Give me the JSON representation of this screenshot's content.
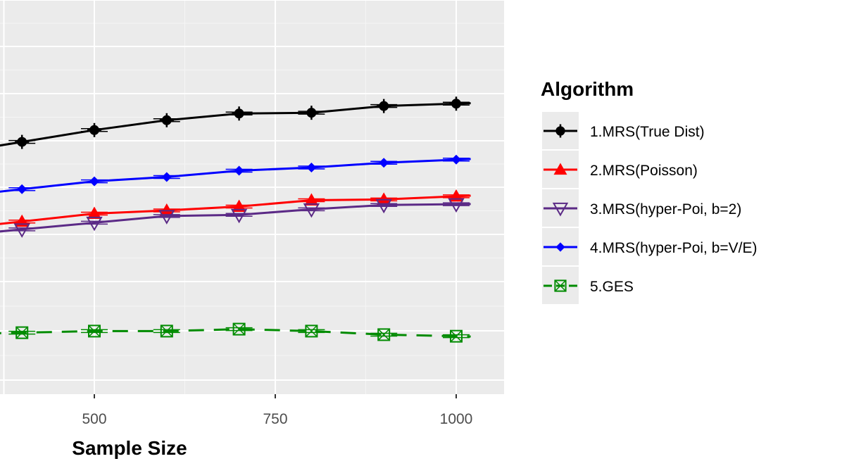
{
  "chart_data": {
    "type": "line",
    "xlabel": "Sample Size",
    "x_ticks": [
      500,
      750,
      1000
    ],
    "x": [
      400,
      500,
      600,
      700,
      800,
      900,
      1000
    ],
    "xlim": [
      350,
      1130
    ],
    "ylim": [
      0,
      10
    ],
    "grid": true,
    "legend": {
      "title": "Algorithm",
      "position": "right"
    },
    "series": [
      {
        "name": "1.MRS(True Dist)",
        "color": "#000000",
        "marker": "circle-plus",
        "dash": false,
        "values": [
          6.4,
          6.7,
          6.95,
          7.12,
          7.14,
          7.31,
          7.37
        ]
      },
      {
        "name": "2.MRS(Poisson)",
        "color": "#ff0000",
        "marker": "triangle",
        "dash": false,
        "values": [
          4.38,
          4.58,
          4.66,
          4.76,
          4.92,
          4.94,
          5.02
        ]
      },
      {
        "name": "3.MRS(hyper-Poi, b=2)",
        "color": "#5b2a86",
        "marker": "triangle-down",
        "dash": false,
        "values": [
          4.18,
          4.35,
          4.52,
          4.55,
          4.69,
          4.8,
          4.82
        ]
      },
      {
        "name": "4.MRS(hyper-Poi, b=V/E)",
        "color": "#0000ff",
        "marker": "diamond",
        "dash": false,
        "values": [
          5.2,
          5.4,
          5.51,
          5.67,
          5.75,
          5.87,
          5.95
        ]
      },
      {
        "name": "5.GES",
        "color": "#008b00",
        "marker": "square-x",
        "dash": true,
        "values": [
          1.56,
          1.6,
          1.6,
          1.65,
          1.6,
          1.51,
          1.47
        ]
      }
    ]
  }
}
